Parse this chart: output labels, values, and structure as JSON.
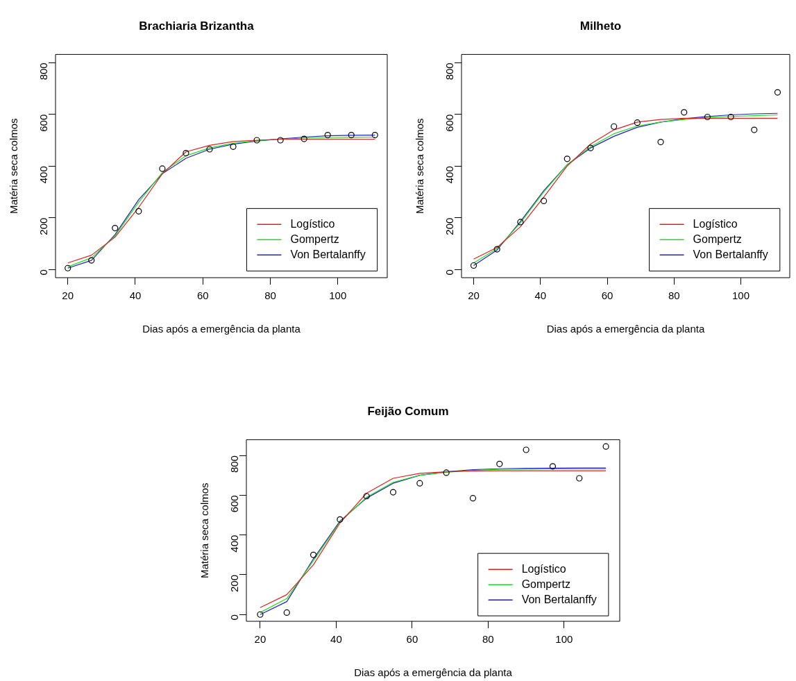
{
  "chart_data": [
    {
      "type": "line",
      "title": "Brachiaria Brizantha",
      "xlabel": "Dias após a emergência da planta",
      "ylabel": "Matéria seca colmos",
      "x": [
        20,
        27,
        34,
        41,
        48,
        55,
        62,
        69,
        76,
        83,
        90,
        97,
        104,
        111
      ],
      "xlim": [
        16.36,
        114.64
      ],
      "xticks": [
        20,
        40,
        60,
        80,
        100
      ],
      "ylim": [
        -32,
        832
      ],
      "yticks": [
        0,
        200,
        400,
        600,
        800
      ],
      "grid": false,
      "legend": "bottom right",
      "marker": "none",
      "line_style": "solid",
      "series": [
        {
          "type": "scatter",
          "marker": "circle",
          "color": "#000000",
          "values": [
            5,
            35,
            160,
            225,
            390,
            450,
            465,
            475,
            500,
            500,
            505,
            520,
            520,
            520
          ]
        },
        {
          "name": "Logístico",
          "color": "#df2020",
          "values": [
            25,
            55,
            125,
            240,
            370,
            455,
            480,
            495,
            500,
            504,
            504,
            504,
            504,
            504
          ]
        },
        {
          "name": "Gompertz",
          "color": "#22dd22",
          "values": [
            10,
            45,
            130,
            260,
            375,
            440,
            470,
            488,
            498,
            504,
            508,
            510,
            511,
            512
          ]
        },
        {
          "name": "Von Bertalanffy",
          "color": "#2020c0",
          "values": [
            5,
            35,
            135,
            270,
            370,
            430,
            465,
            485,
            497,
            505,
            512,
            517,
            519,
            520
          ]
        }
      ]
    },
    {
      "type": "line",
      "title": "Milheto",
      "xlabel": "Dias após a emergência da planta",
      "ylabel": "Matéria seca colmos",
      "x": [
        20,
        27,
        34,
        41,
        48,
        55,
        62,
        69,
        76,
        83,
        90,
        97,
        104,
        111
      ],
      "xlim": [
        16.36,
        114.64
      ],
      "xticks": [
        20,
        40,
        60,
        80,
        100
      ],
      "ylim": [
        -32,
        832
      ],
      "yticks": [
        0,
        200,
        400,
        600,
        800
      ],
      "grid": false,
      "legend": "bottom right",
      "marker": "none",
      "line_style": "solid",
      "series": [
        {
          "type": "scatter",
          "marker": "circle",
          "color": "#000000",
          "values": [
            15,
            78,
            183,
            265,
            428,
            470,
            553,
            568,
            493,
            608,
            590,
            590,
            540,
            685
          ]
        },
        {
          "name": "Logístico",
          "color": "#df2020",
          "values": [
            40,
            85,
            165,
            280,
            400,
            485,
            540,
            570,
            580,
            585,
            585,
            585,
            585,
            585
          ]
        },
        {
          "name": "Gompertz",
          "color": "#22dd22",
          "values": [
            25,
            80,
            180,
            300,
            405,
            475,
            525,
            555,
            570,
            580,
            588,
            592,
            595,
            598
          ]
        },
        {
          "name": "Von Bertalanffy",
          "color": "#2020c0",
          "values": [
            15,
            75,
            185,
            305,
            405,
            470,
            515,
            550,
            570,
            583,
            592,
            598,
            602,
            604
          ]
        }
      ]
    },
    {
      "type": "line",
      "title": "Feijão Comum",
      "xlabel": "Dias após a emergência da planta",
      "ylabel": "Matéria seca colmos",
      "x": [
        20,
        27,
        34,
        41,
        48,
        55,
        62,
        69,
        76,
        83,
        90,
        97,
        104,
        111
      ],
      "xlim": [
        16.36,
        114.64
      ],
      "xticks": [
        20,
        40,
        60,
        80,
        100
      ],
      "ylim": [
        -34,
        879
      ],
      "yticks": [
        0,
        200,
        400,
        600,
        800
      ],
      "grid": false,
      "legend": "bottom right",
      "marker": "none",
      "line_style": "solid",
      "series": [
        {
          "type": "scatter",
          "marker": "circle",
          "color": "#000000",
          "values": [
            0,
            10,
            300,
            478,
            595,
            615,
            660,
            713,
            585,
            757,
            828,
            745,
            685,
            845
          ]
        },
        {
          "name": "Logístico",
          "color": "#df2020",
          "values": [
            35,
            100,
            250,
            460,
            610,
            685,
            710,
            718,
            722,
            723,
            723,
            723,
            723,
            723
          ]
        },
        {
          "name": "Gompertz",
          "color": "#22dd22",
          "values": [
            10,
            80,
            270,
            465,
            590,
            665,
            700,
            715,
            725,
            730,
            731,
            732,
            732,
            732
          ]
        },
        {
          "name": "Von Bertalanffy",
          "color": "#2020c0",
          "values": [
            0,
            65,
            280,
            470,
            585,
            660,
            700,
            718,
            728,
            733,
            735,
            736,
            737,
            737
          ]
        }
      ]
    }
  ]
}
